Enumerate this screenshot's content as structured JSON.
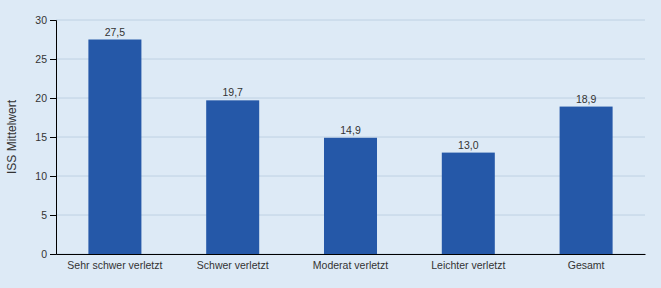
{
  "chart_data": {
    "type": "bar",
    "categories": [
      "Sehr schwer verletzt",
      "Schwer verletzt",
      "Moderat verletzt",
      "Leichter verletzt",
      "Gesamt"
    ],
    "values": [
      27.5,
      19.7,
      14.9,
      13.0,
      18.9
    ],
    "value_labels": [
      "27,5",
      "19,7",
      "14,9",
      "13,0",
      "18,9"
    ],
    "color": "#2558a8",
    "ylabel": "ISS Mittelwert",
    "ylim": [
      0,
      30
    ],
    "yticks": [
      0,
      5,
      10,
      15,
      20,
      25,
      30
    ],
    "grid": true,
    "data_labels": true
  }
}
